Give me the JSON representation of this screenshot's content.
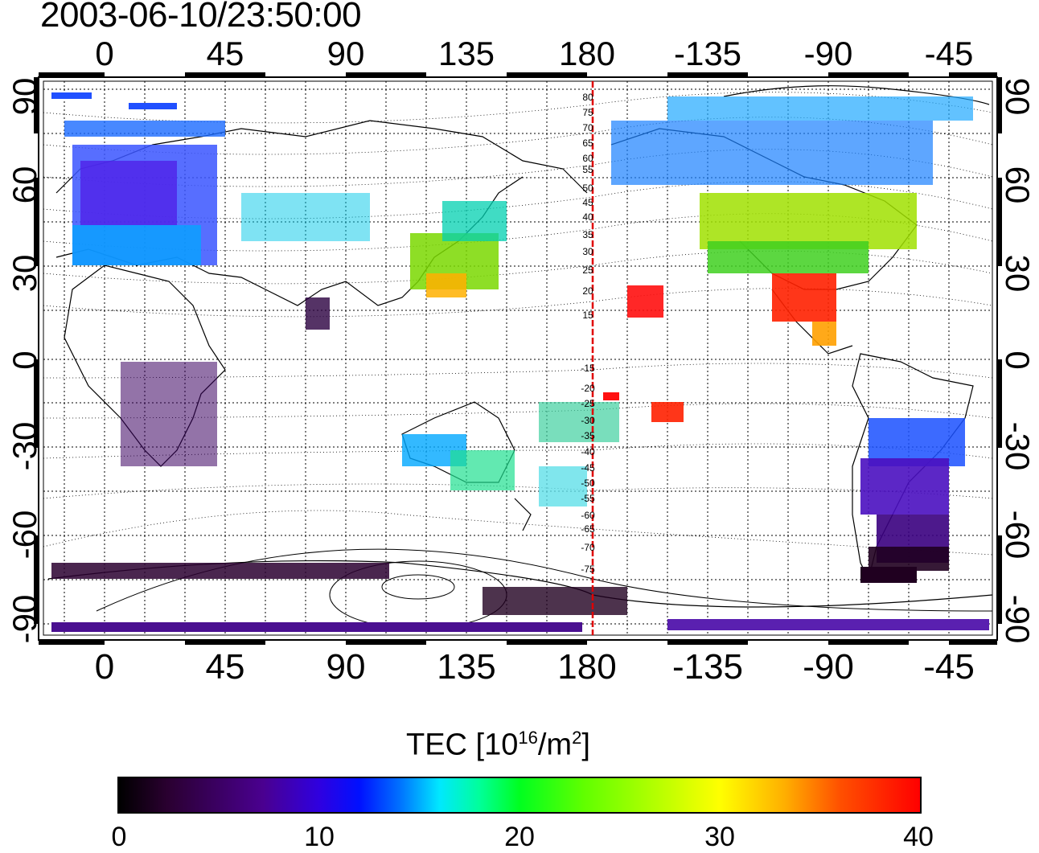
{
  "title": "2003-06-10/23:50:00",
  "top_lon_labels": [
    "0",
    "45",
    "90",
    "135",
    "180",
    "-135",
    "-90",
    "-45"
  ],
  "bottom_lon_labels": [
    "0",
    "45",
    "90",
    "135",
    "180",
    "-135",
    "-90",
    "-45"
  ],
  "left_lat_labels": [
    "90",
    "60",
    "30",
    "0",
    "-30",
    "-60",
    "-90"
  ],
  "right_lat_labels": [
    "90",
    "60",
    "30",
    "0",
    "-30",
    "-60",
    "-90"
  ],
  "meridian_labels": [
    "80",
    "75",
    "70",
    "65",
    "60",
    "55",
    "50",
    "45",
    "40",
    "35",
    "30",
    "25",
    "20",
    "15",
    "-15",
    "-20",
    "-25",
    "-30",
    "-35",
    "-40",
    "-45",
    "-50",
    "-55",
    "-60",
    "-65",
    "-70",
    "-75"
  ],
  "colorbar": {
    "title_prefix": "TEC  [10",
    "title_sup1": "16",
    "title_mid": "/m",
    "title_sup2": "2",
    "title_suffix": "]",
    "ticks": [
      "0",
      "10",
      "20",
      "30",
      "40"
    ],
    "min": 0,
    "max": 40
  },
  "colors": {
    "meridian_line": "#e00000",
    "grid": "#000000"
  }
}
